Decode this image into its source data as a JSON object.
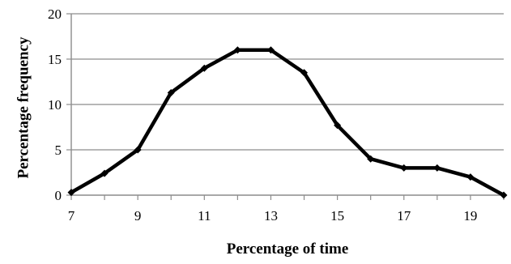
{
  "chart_data": {
    "type": "line",
    "title": "",
    "xlabel": "Percentage of time",
    "ylabel": "Percentage frequency",
    "xlim": [
      7,
      20
    ],
    "ylim": [
      0,
      20
    ],
    "x_ticks": [
      7,
      9,
      11,
      13,
      15,
      17,
      19
    ],
    "y_ticks": [
      0,
      5,
      10,
      15,
      20
    ],
    "grid": "horizontal",
    "legend": "none",
    "line_color": "#000000",
    "grid_color": "#8c8c8c",
    "series": [
      {
        "x": [
          7,
          8,
          9,
          10,
          11,
          12,
          13,
          14,
          15,
          16,
          17,
          18,
          19,
          20
        ],
        "y": [
          0.3,
          2.4,
          5.0,
          11.3,
          14.0,
          16.0,
          16.0,
          13.5,
          7.7,
          4.0,
          3.0,
          3.0,
          2.0,
          0.0
        ]
      }
    ]
  }
}
